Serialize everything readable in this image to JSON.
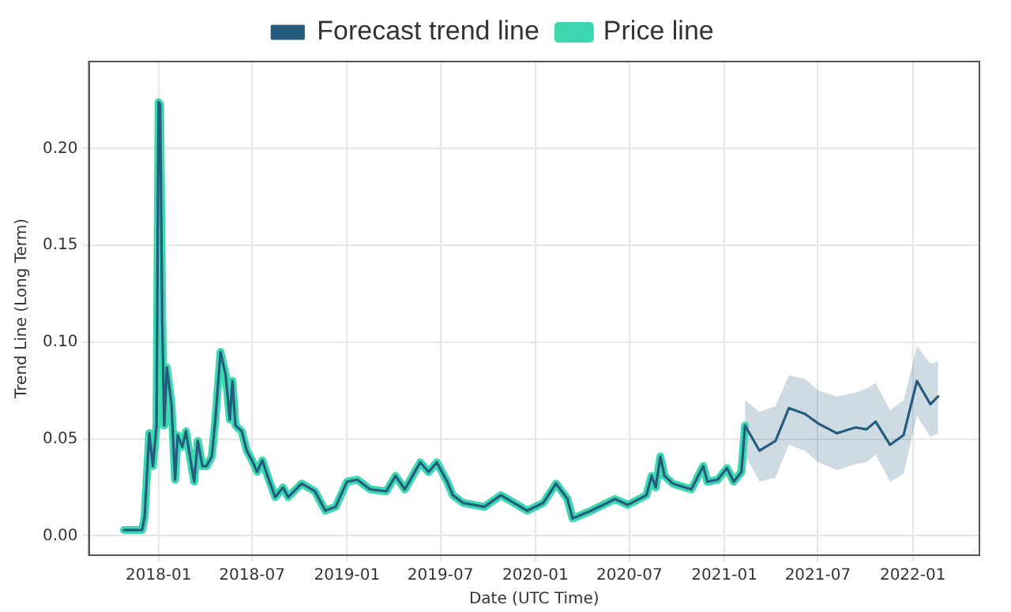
{
  "chart_data": {
    "type": "line",
    "xlabel": "Date (UTC Time)",
    "ylabel": "Trend Line (Long Term)",
    "xlim": [
      "2017-08-19",
      "2022-05-10"
    ],
    "xticks": [
      "2018-01",
      "2018-07",
      "2019-01",
      "2019-07",
      "2020-01",
      "2020-07",
      "2021-01",
      "2021-07",
      "2022-01"
    ],
    "ylim": [
      -0.01,
      0.245
    ],
    "yticks": [
      {
        "value": 0,
        "label": "0.00"
      },
      {
        "value": 0.05,
        "label": "0.05"
      },
      {
        "value": 0.1,
        "label": "0.10"
      },
      {
        "value": 0.15,
        "label": "0.15"
      },
      {
        "value": 0.2,
        "label": "0.20"
      }
    ],
    "grid": true,
    "legend": "top",
    "marker": "none",
    "line_style": "solid",
    "series": [
      {
        "name": "Price line",
        "color": "#3ed8b0",
        "x": [
          "2017-10-26",
          "2017-11-30",
          "2017-12-05",
          "2017-12-14",
          "2017-12-21",
          "2017-12-28",
          "2018-01-01",
          "2018-01-04",
          "2018-01-08",
          "2018-01-12",
          "2018-01-17",
          "2018-01-26",
          "2018-02-02",
          "2018-02-07",
          "2018-02-16",
          "2018-02-23",
          "2018-03-04",
          "2018-03-11",
          "2018-03-18",
          "2018-03-27",
          "2018-04-04",
          "2018-04-14",
          "2018-04-21",
          "2018-05-01",
          "2018-05-11",
          "2018-05-19",
          "2018-05-24",
          "2018-05-30",
          "2018-06-11",
          "2018-06-21",
          "2018-07-01",
          "2018-07-11",
          "2018-07-21",
          "2018-07-31",
          "2018-08-15",
          "2018-08-30",
          "2018-09-09",
          "2018-10-05",
          "2018-10-31",
          "2018-11-20",
          "2018-12-10",
          "2019-01-01",
          "2019-01-21",
          "2019-02-15",
          "2019-03-18",
          "2019-04-05",
          "2019-04-23",
          "2019-05-23",
          "2019-06-08",
          "2019-06-24",
          "2019-07-14",
          "2019-07-25",
          "2019-08-14",
          "2019-09-24",
          "2019-10-26",
          "2019-12-16",
          "2020-01-16",
          "2020-02-10",
          "2020-03-03",
          "2020-03-13",
          "2020-04-18",
          "2020-06-03",
          "2020-06-28",
          "2020-08-03",
          "2020-08-13",
          "2020-08-21",
          "2020-08-30",
          "2020-09-07",
          "2020-09-23",
          "2020-10-29",
          "2020-11-21",
          "2020-11-29",
          "2020-12-19",
          "2021-01-06",
          "2021-01-19",
          "2021-02-03",
          "2021-02-10"
        ],
        "values": [
          0.003,
          0.003,
          0.01,
          0.053,
          0.036,
          0.057,
          0.224,
          0.223,
          0.112,
          0.057,
          0.087,
          0.068,
          0.029,
          0.052,
          0.046,
          0.054,
          0.039,
          0.028,
          0.049,
          0.036,
          0.036,
          0.041,
          0.06,
          0.095,
          0.083,
          0.06,
          0.08,
          0.057,
          0.054,
          0.044,
          0.039,
          0.033,
          0.039,
          0.031,
          0.02,
          0.025,
          0.02,
          0.027,
          0.023,
          0.013,
          0.015,
          0.028,
          0.029,
          0.024,
          0.023,
          0.031,
          0.024,
          0.038,
          0.033,
          0.038,
          0.028,
          0.021,
          0.017,
          0.015,
          0.021,
          0.013,
          0.017,
          0.027,
          0.019,
          0.009,
          0.013,
          0.019,
          0.016,
          0.021,
          0.031,
          0.025,
          0.041,
          0.031,
          0.027,
          0.024,
          0.036,
          0.028,
          0.029,
          0.035,
          0.028,
          0.033,
          0.057
        ]
      },
      {
        "name": "Forecast trend line",
        "color": "#245b7e",
        "x": [
          "2017-10-26",
          "2017-11-30",
          "2017-12-05",
          "2017-12-14",
          "2017-12-21",
          "2017-12-28",
          "2018-01-01",
          "2018-01-04",
          "2018-01-08",
          "2018-01-12",
          "2018-01-17",
          "2018-01-26",
          "2018-02-02",
          "2018-02-07",
          "2018-02-16",
          "2018-02-23",
          "2018-03-04",
          "2018-03-11",
          "2018-03-18",
          "2018-03-27",
          "2018-04-04",
          "2018-04-14",
          "2018-04-21",
          "2018-05-01",
          "2018-05-11",
          "2018-05-19",
          "2018-05-24",
          "2018-05-30",
          "2018-06-11",
          "2018-06-21",
          "2018-07-01",
          "2018-07-11",
          "2018-07-21",
          "2018-07-31",
          "2018-08-15",
          "2018-08-30",
          "2018-09-09",
          "2018-10-05",
          "2018-10-31",
          "2018-11-20",
          "2018-12-10",
          "2019-01-01",
          "2019-01-21",
          "2019-02-15",
          "2019-03-18",
          "2019-04-05",
          "2019-04-23",
          "2019-05-23",
          "2019-06-08",
          "2019-06-24",
          "2019-07-14",
          "2019-07-25",
          "2019-08-14",
          "2019-09-24",
          "2019-10-26",
          "2019-12-16",
          "2020-01-16",
          "2020-02-10",
          "2020-03-03",
          "2020-03-13",
          "2020-04-18",
          "2020-06-03",
          "2020-06-28",
          "2020-08-03",
          "2020-08-13",
          "2020-08-21",
          "2020-08-30",
          "2020-09-07",
          "2020-09-23",
          "2020-10-29",
          "2020-11-21",
          "2020-11-29",
          "2020-12-19",
          "2021-01-06",
          "2021-01-19",
          "2021-02-03",
          "2021-02-10",
          "2021-03-10",
          "2021-04-10",
          "2021-05-06",
          "2021-06-06",
          "2021-07-02",
          "2021-08-07",
          "2021-09-12",
          "2021-10-03",
          "2021-10-21",
          "2021-11-18",
          "2021-12-14",
          "2022-01-09",
          "2022-02-04",
          "2022-02-19"
        ],
        "values": [
          0.003,
          0.003,
          0.01,
          0.053,
          0.036,
          0.057,
          0.224,
          0.223,
          0.112,
          0.057,
          0.087,
          0.068,
          0.029,
          0.052,
          0.046,
          0.054,
          0.039,
          0.028,
          0.049,
          0.036,
          0.036,
          0.041,
          0.06,
          0.095,
          0.083,
          0.06,
          0.08,
          0.057,
          0.054,
          0.044,
          0.039,
          0.033,
          0.039,
          0.031,
          0.02,
          0.025,
          0.02,
          0.027,
          0.023,
          0.013,
          0.015,
          0.028,
          0.029,
          0.024,
          0.023,
          0.031,
          0.024,
          0.038,
          0.033,
          0.038,
          0.028,
          0.021,
          0.017,
          0.015,
          0.021,
          0.013,
          0.017,
          0.027,
          0.019,
          0.009,
          0.013,
          0.019,
          0.016,
          0.021,
          0.031,
          0.025,
          0.041,
          0.031,
          0.027,
          0.024,
          0.036,
          0.028,
          0.029,
          0.035,
          0.028,
          0.033,
          0.057,
          0.044,
          0.049,
          0.066,
          0.063,
          0.058,
          0.053,
          0.056,
          0.055,
          0.059,
          0.047,
          0.052,
          0.08,
          0.068,
          0.072
        ],
        "lower": [
          null,
          null,
          null,
          null,
          null,
          null,
          null,
          null,
          null,
          null,
          null,
          null,
          null,
          null,
          null,
          null,
          null,
          null,
          null,
          null,
          null,
          null,
          null,
          null,
          null,
          null,
          null,
          null,
          null,
          null,
          null,
          null,
          null,
          null,
          null,
          null,
          null,
          null,
          null,
          null,
          null,
          null,
          null,
          null,
          null,
          null,
          null,
          null,
          null,
          null,
          null,
          null,
          null,
          null,
          null,
          null,
          null,
          null,
          null,
          null,
          null,
          null,
          null,
          null,
          null,
          null,
          null,
          null,
          null,
          null,
          null,
          null,
          null,
          null,
          null,
          null,
          0.042,
          0.028,
          0.03,
          0.047,
          0.044,
          0.038,
          0.034,
          0.037,
          0.038,
          0.042,
          0.028,
          0.032,
          0.062,
          0.051,
          0.053
        ],
        "upper": [
          null,
          null,
          null,
          null,
          null,
          null,
          null,
          null,
          null,
          null,
          null,
          null,
          null,
          null,
          null,
          null,
          null,
          null,
          null,
          null,
          null,
          null,
          null,
          null,
          null,
          null,
          null,
          null,
          null,
          null,
          null,
          null,
          null,
          null,
          null,
          null,
          null,
          null,
          null,
          null,
          null,
          null,
          null,
          null,
          null,
          null,
          null,
          null,
          null,
          null,
          null,
          null,
          null,
          null,
          null,
          null,
          null,
          null,
          null,
          null,
          null,
          null,
          null,
          null,
          null,
          null,
          null,
          null,
          null,
          null,
          null,
          null,
          null,
          null,
          null,
          null,
          0.07,
          0.064,
          0.067,
          0.083,
          0.081,
          0.075,
          0.072,
          0.074,
          0.076,
          0.079,
          0.065,
          0.07,
          0.098,
          0.089,
          0.09
        ]
      }
    ]
  }
}
